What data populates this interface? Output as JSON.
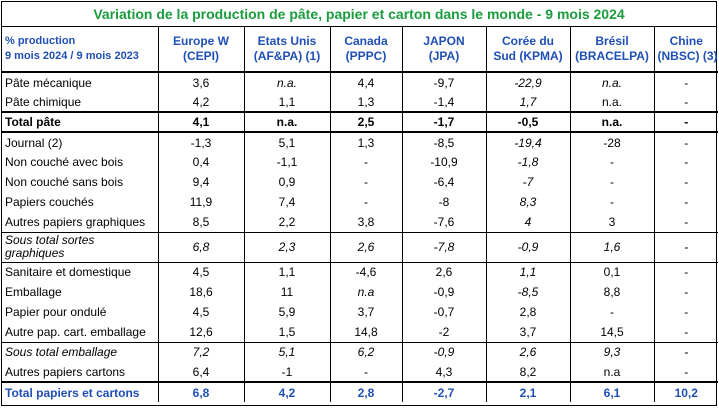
{
  "title": "Variation de la production de pâte, papier et carton dans le monde - 9 mois 2024",
  "header": {
    "label_line1": "% production",
    "label_line2": "9 mois 2024 / 9 mois 2023",
    "columns": [
      {
        "line1": "Europe  W",
        "line2": "(CEPI)"
      },
      {
        "line1": "Etats Unis",
        "line2": "(AF&PA) (1)"
      },
      {
        "line1": "Canada",
        "line2": "(PPPC)"
      },
      {
        "line1": "JAPON",
        "line2": "(JPA)"
      },
      {
        "line1": "Corée du",
        "line2": "Sud  (KPMA)"
      },
      {
        "line1": "Brésil",
        "line2": "(BRACELPA)"
      },
      {
        "line1": "Chine",
        "line2": "(NBSC) (3)"
      }
    ]
  },
  "rows": [
    {
      "label": "Pâte mécanique",
      "values": [
        "3,6",
        "n.a.",
        "4,4",
        "-9,7",
        "-22,9",
        "n.a.",
        "-"
      ]
    },
    {
      "label": "Pâte chimique",
      "values": [
        "4,2",
        "1,1",
        "1,3",
        "-1,4",
        "1,7",
        "n.a.",
        "-"
      ]
    },
    {
      "label": "Total pâte",
      "values": [
        "4,1",
        "n.a.",
        "2,5",
        "-1,7",
        "-0,5",
        "n.a.",
        "-"
      ]
    },
    {
      "label": "Journal (2)",
      "values": [
        "-1,3",
        "5,1",
        "1,3",
        "-8,5",
        "-19,4",
        "-28",
        "-"
      ]
    },
    {
      "label": "Non couché avec bois",
      "values": [
        "0,4",
        "-1,1",
        "-",
        "-10,9",
        "-1,8",
        "-",
        "-"
      ]
    },
    {
      "label": "Non couché sans bois",
      "values": [
        "9,4",
        "0,9",
        "-",
        "-6,4",
        "-7",
        "-",
        "-"
      ]
    },
    {
      "label": "Papiers couchés",
      "values": [
        "11,9",
        "7,4",
        "-",
        "-8",
        "8,3",
        "-",
        "-"
      ]
    },
    {
      "label": "Autres papiers graphiques",
      "values": [
        "8,5",
        "2,2",
        "3,8",
        "-7,6",
        "4",
        "3",
        "-"
      ]
    },
    {
      "label": "Sous total sortes graphiques",
      "values": [
        "6,8",
        "2,3",
        "2,6",
        "-7,8",
        "-0,9",
        "1,6",
        "-"
      ]
    },
    {
      "label": "Sanitaire et domestique",
      "values": [
        "4,5",
        "1,1",
        "-4,6",
        "2,6",
        "1,1",
        "0,1",
        "-"
      ]
    },
    {
      "label": "Emballage",
      "values": [
        "18,6",
        "11",
        "n.a",
        "-0,9",
        "-8,5",
        "8,8",
        "-"
      ]
    },
    {
      "label": "Papier pour ondulé",
      "values": [
        "4,5",
        "5,9",
        "3,7",
        "-0,7",
        "2,8",
        "-",
        "-"
      ]
    },
    {
      "label": "Autre pap. cart. emballage",
      "values": [
        "12,6",
        "1,5",
        "14,8",
        "-2",
        "3,7",
        "14,5",
        "-"
      ]
    },
    {
      "label": "Sous total emballage",
      "values": [
        "7,2",
        "5,1",
        "6,2",
        "-0,9",
        "2,6",
        "9,3",
        "-"
      ]
    },
    {
      "label": "Autres papiers cartons",
      "values": [
        "6,4",
        "-1",
        "-",
        "4,3",
        "8,2",
        "n.a",
        "-"
      ]
    },
    {
      "label": "Total papiers et cartons",
      "values": [
        "6,8",
        "4,2",
        "2,8",
        "-2,7",
        "2,1",
        "6,1",
        "10,2"
      ]
    }
  ]
}
